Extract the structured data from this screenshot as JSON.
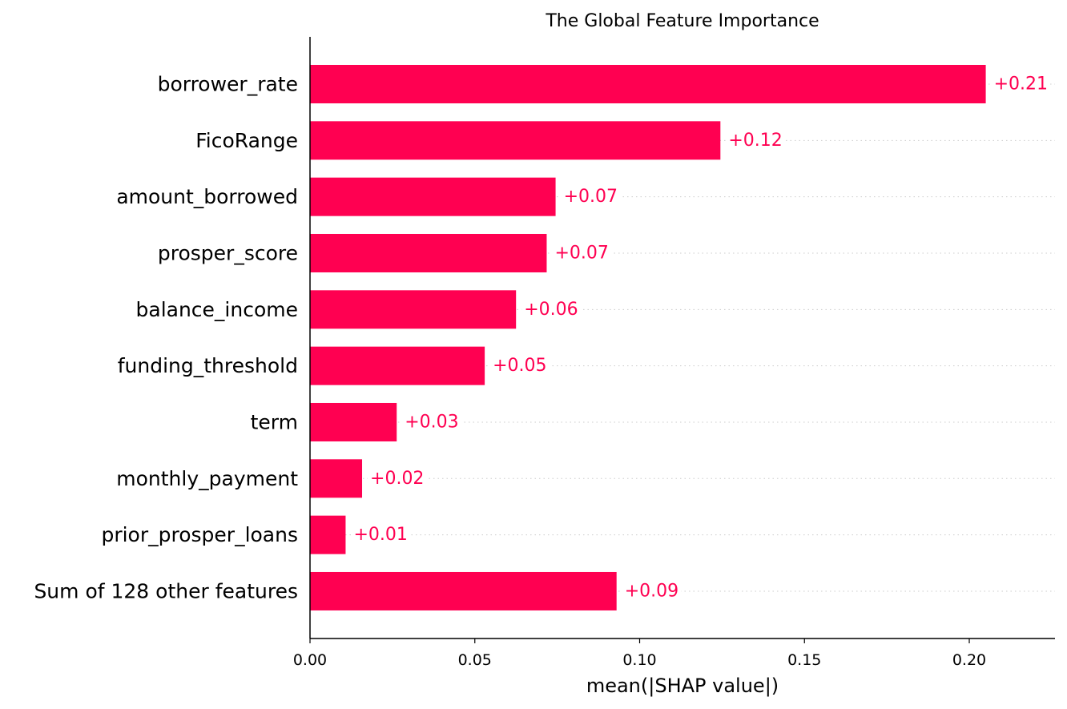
{
  "chart_data": {
    "type": "bar",
    "orientation": "horizontal",
    "title": "The Global Feature Importance",
    "xlabel": "mean(|SHAP value|)",
    "ylabel": "",
    "categories": [
      "borrower_rate",
      "FicoRange",
      "amount_borrowed",
      "prosper_score",
      "balance_income",
      "funding_threshold",
      "term",
      "monthly_payment",
      "prior_prosper_loans",
      "Sum of 128 other features"
    ],
    "values": [
      0.205,
      0.1245,
      0.0745,
      0.0718,
      0.0625,
      0.053,
      0.0263,
      0.0158,
      0.0108,
      0.093
    ],
    "value_labels": [
      "+0.21",
      "+0.12",
      "+0.07",
      "+0.07",
      "+0.06",
      "+0.05",
      "+0.03",
      "+0.02",
      "+0.01",
      "+0.09"
    ],
    "xlim": [
      0,
      0.226
    ],
    "xticks": [
      0.0,
      0.05,
      0.1,
      0.15,
      0.2
    ],
    "xtick_labels": [
      "0.00",
      "0.05",
      "0.10",
      "0.15",
      "0.20"
    ],
    "grid": false,
    "legend": "none",
    "colors": {
      "bar": "#ff0051",
      "value_label": "#ff0051",
      "guide_line": "#cccccc",
      "axis": "#000000"
    }
  }
}
